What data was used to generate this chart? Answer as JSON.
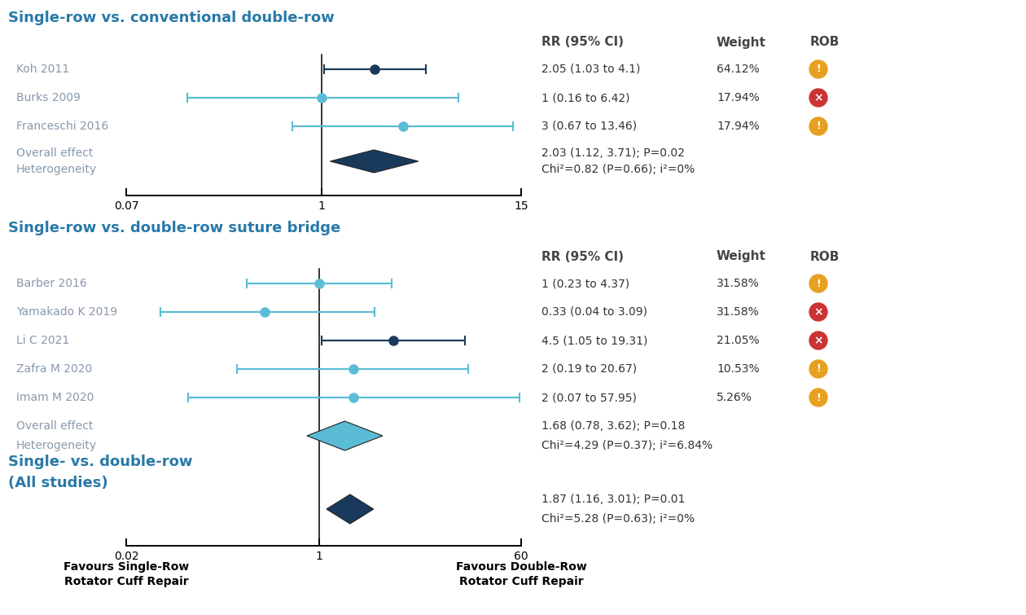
{
  "section1_title": "Single-row vs. conventional double-row",
  "section2_title": "Single-row vs. double-row suture bridge",
  "section3_title": "Single- vs. double-row\n(All studies)",
  "group1_studies": [
    {
      "label": "Koh 2011",
      "rr": 2.05,
      "ci_lo": 1.03,
      "ci_hi": 4.1,
      "color": "#1a3a5c",
      "weight": "64.12%",
      "ci_str": "2.05 (1.03 to 4.1)",
      "rob": "yellow"
    },
    {
      "label": "Burks 2009",
      "rr": 1.0,
      "ci_lo": 0.16,
      "ci_hi": 6.42,
      "color": "#5bbcd6",
      "weight": "17.94%",
      "ci_str": "1 (0.16 to 6.42)",
      "rob": "red"
    },
    {
      "label": "Franceschi 2016",
      "rr": 3.0,
      "ci_lo": 0.67,
      "ci_hi": 13.46,
      "color": "#5bbcd6",
      "weight": "17.94%",
      "ci_str": "3 (0.67 to 13.46)",
      "rob": "yellow"
    }
  ],
  "group1_overall": {
    "rr": 2.03,
    "ci_lo": 1.12,
    "ci_hi": 3.71,
    "ci_str": "2.03 (1.12, 3.71); P=0.02",
    "het_str": "Chi²=0.82 (P=0.66); i²=0%",
    "color": "#1a3a5c"
  },
  "group1_lo": 0.07,
  "group1_hi": 15,
  "group2_studies": [
    {
      "label": "Barber 2016",
      "rr": 1.0,
      "ci_lo": 0.23,
      "ci_hi": 4.37,
      "color": "#5bbcd6",
      "weight": "31.58%",
      "ci_str": "1 (0.23 to 4.37)",
      "rob": "yellow"
    },
    {
      "label": "Yamakado K 2019",
      "rr": 0.33,
      "ci_lo": 0.04,
      "ci_hi": 3.09,
      "color": "#5bbcd6",
      "weight": "31.58%",
      "ci_str": "0.33 (0.04 to 3.09)",
      "rob": "red"
    },
    {
      "label": "Li C 2021",
      "rr": 4.5,
      "ci_lo": 1.05,
      "ci_hi": 19.31,
      "color": "#1a3a5c",
      "weight": "21.05%",
      "ci_str": "4.5 (1.05 to 19.31)",
      "rob": "red"
    },
    {
      "label": "Zafra M 2020",
      "rr": 2.0,
      "ci_lo": 0.19,
      "ci_hi": 20.67,
      "color": "#5bbcd6",
      "weight": "10.53%",
      "ci_str": "2 (0.19 to 20.67)",
      "rob": "yellow"
    },
    {
      "label": "Imam M 2020",
      "rr": 2.0,
      "ci_lo": 0.07,
      "ci_hi": 57.95,
      "color": "#5bbcd6",
      "weight": "5.26%",
      "ci_str": "2 (0.07 to 57.95)",
      "rob": "yellow"
    }
  ],
  "group2_overall": {
    "rr": 1.68,
    "ci_lo": 0.78,
    "ci_hi": 3.62,
    "ci_str": "1.68 (0.78, 3.62); P=0.18",
    "het_str": "Chi²=4.29 (P=0.37); i²=6.84%",
    "color": "#5bbcd6"
  },
  "group3_overall": {
    "rr": 1.87,
    "ci_lo": 1.16,
    "ci_hi": 3.01,
    "ci_str": "1.87 (1.16, 3.01); P=0.01",
    "het_str": "Chi²=5.28 (P=0.63); i²=0%",
    "color": "#1a3a5c"
  },
  "axis2_lo": 0.02,
  "axis2_hi": 60,
  "title_color": "#2979a8",
  "label_color": "#8899aa",
  "header_color": "#444444",
  "text_color": "#333333",
  "bg_color": "#ffffff"
}
